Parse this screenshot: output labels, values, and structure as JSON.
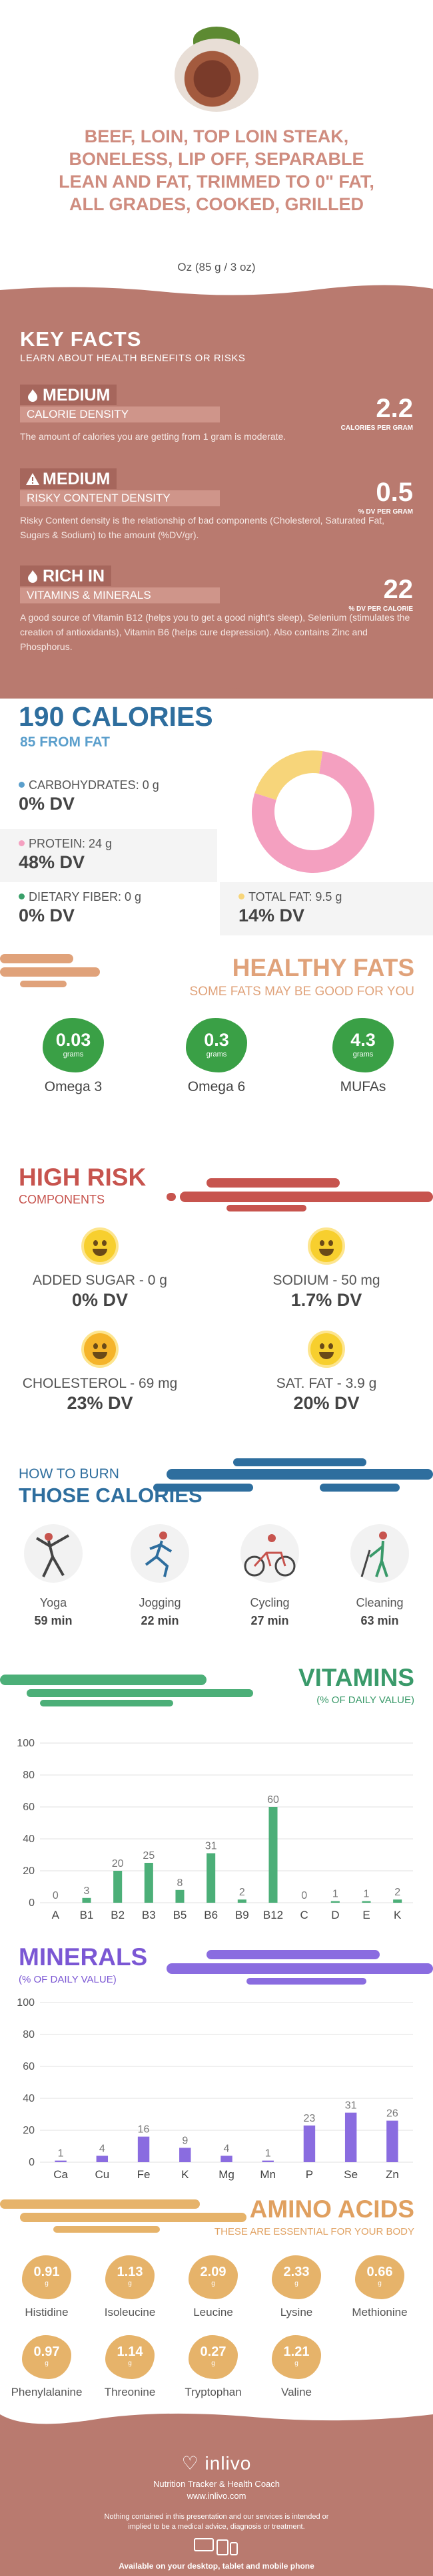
{
  "header": {
    "title": "BEEF, LOIN, TOP LOIN STEAK, BONELESS, LIP OFF, SEPARABLE LEAN AND FAT, TRIMMED TO 0\" FAT, ALL GRADES, COOKED, GRILLED",
    "serving": "Oz (85 g / 3 oz)"
  },
  "key_facts": {
    "title": "KEY FACTS",
    "subtitle": "LEARN ABOUT HEALTH BENEFITS OR RISKS",
    "items": [
      {
        "level": "MEDIUM",
        "label": "CALORIE DENSITY",
        "value": "2.2",
        "unit": "CALORIES PER GRAM",
        "desc": "The amount of calories you are getting from 1 gram is moderate.",
        "icon": "flame-icon"
      },
      {
        "level": "MEDIUM",
        "label": "RISKY CONTENT DENSITY",
        "value": "0.5",
        "unit": "% DV PER GRAM",
        "desc": "Risky Content density is the relationship of bad components (Cholesterol, Saturated Fat, Sugars & Sodium) to the amount (%DV/gr).",
        "icon": "warning-icon"
      },
      {
        "level": "RICH IN",
        "label": "VITAMINS & MINERALS",
        "value": "22",
        "unit": "% DV PER CALORIE",
        "desc": "A good source of Vitamin B12 (helps you to get a good night's sleep), Selenium (stimulates the creation of antioxidants), Vitamin B6 (helps cure depression). Also contains Zinc and Phosphorus.",
        "icon": "flame-icon"
      }
    ]
  },
  "calories": {
    "total": "190 CALORIES",
    "from": "85 FROM FAT",
    "macros": [
      {
        "label": "CARBOHYDRATES: 0 g",
        "dv": "0% DV",
        "color": "#5b9fcc"
      },
      {
        "label": "PROTEIN: 24 g",
        "dv": "48% DV",
        "color": "#f4a0c0"
      },
      {
        "label": "DIETARY FIBER: 0 g",
        "dv": "0% DV",
        "color": "#3aa06a"
      },
      {
        "label": "TOTAL FAT: 9.5 g",
        "dv": "14% DV",
        "color": "#f7d57a"
      }
    ]
  },
  "chart_data": [
    {
      "type": "pie",
      "categories": [
        "PROTEIN",
        "TOTAL FAT"
      ],
      "values": [
        48,
        14
      ],
      "colors": [
        "#f4a0c0",
        "#f7d57a"
      ]
    },
    {
      "type": "bar",
      "categories": [
        "A",
        "B1",
        "B2",
        "B3",
        "B5",
        "B6",
        "B9",
        "B12",
        "C",
        "D",
        "E",
        "K"
      ],
      "values": [
        0,
        3,
        20,
        25,
        8,
        31,
        2,
        60,
        0,
        1,
        1,
        2
      ],
      "ylim": [
        0,
        100
      ],
      "yticks": [
        0,
        20,
        40,
        60,
        80,
        100
      ],
      "color": "#4caf78"
    },
    {
      "type": "bar",
      "categories": [
        "Ca",
        "Cu",
        "Fe",
        "K",
        "Mg",
        "Mn",
        "P",
        "Se",
        "Zn"
      ],
      "values": [
        1,
        4,
        16,
        9,
        4,
        1,
        23,
        31,
        26
      ],
      "ylim": [
        0,
        100
      ],
      "yticks": [
        0,
        20,
        40,
        60,
        80,
        100
      ],
      "color": "#8a6ce0"
    }
  ],
  "fats": {
    "title": "HEALTHY FATS",
    "subtitle": "SOME FATS MAY BE GOOD FOR YOU",
    "unit": "grams",
    "items": [
      {
        "value": "0.03",
        "name": "Omega 3"
      },
      {
        "value": "0.3",
        "name": "Omega 6"
      },
      {
        "value": "4.3",
        "name": "MUFAs"
      }
    ]
  },
  "risk": {
    "title": "HIGH RISK",
    "subtitle": "COMPONENTS",
    "items": [
      {
        "label": "ADDED SUGAR - 0 g",
        "dv": "0% DV",
        "icon": "grin-face-icon"
      },
      {
        "label": "SODIUM - 50 mg",
        "dv": "1.7% DV",
        "icon": "smile-face-icon"
      },
      {
        "label": "CHOLESTEROL - 69 mg",
        "dv": "23% DV",
        "icon": "smile-face-icon"
      },
      {
        "label": "SAT. FAT - 3.9 g",
        "dv": "20% DV",
        "icon": "smile-face-icon"
      }
    ]
  },
  "burn": {
    "line1": "HOW TO BURN",
    "line2": "THOSE CALORIES",
    "items": [
      {
        "name": "Yoga",
        "min": "59 min",
        "icon": "yoga-icon"
      },
      {
        "name": "Jogging",
        "min": "22 min",
        "icon": "jogging-icon"
      },
      {
        "name": "Cycling",
        "min": "27 min",
        "icon": "cycling-icon"
      },
      {
        "name": "Cleaning",
        "min": "63 min",
        "icon": "cleaning-icon"
      }
    ]
  },
  "vitamins": {
    "title": "VITAMINS",
    "subtitle": "(% OF DAILY VALUE)"
  },
  "minerals": {
    "title": "MINERALS",
    "subtitle": "(% OF DAILY VALUE)"
  },
  "amino": {
    "title": "AMINO ACIDS",
    "subtitle": "THESE ARE ESSENTIAL FOR YOUR BODY",
    "unit": "g",
    "items": [
      {
        "value": "0.91",
        "name": "Histidine"
      },
      {
        "value": "1.13",
        "name": "Isoleucine"
      },
      {
        "value": "2.09",
        "name": "Leucine"
      },
      {
        "value": "2.33",
        "name": "Lysine"
      },
      {
        "value": "0.66",
        "name": "Methionine"
      },
      {
        "value": "0.97",
        "name": "Phenylalanine"
      },
      {
        "value": "1.14",
        "name": "Threonine"
      },
      {
        "value": "0.27",
        "name": "Tryptophan"
      },
      {
        "value": "1.21",
        "name": "Valine"
      }
    ]
  },
  "footer": {
    "logo": "inlivo",
    "tagline": "Nutrition Tracker & Health Coach",
    "url": "www.inlivo.com",
    "disclaimer": "Nothing contained in this presentation and our services is intended or implied to be a medical advice, diagnosis or treatment.",
    "available": "Available on your desktop, tablet and mobile phone"
  }
}
